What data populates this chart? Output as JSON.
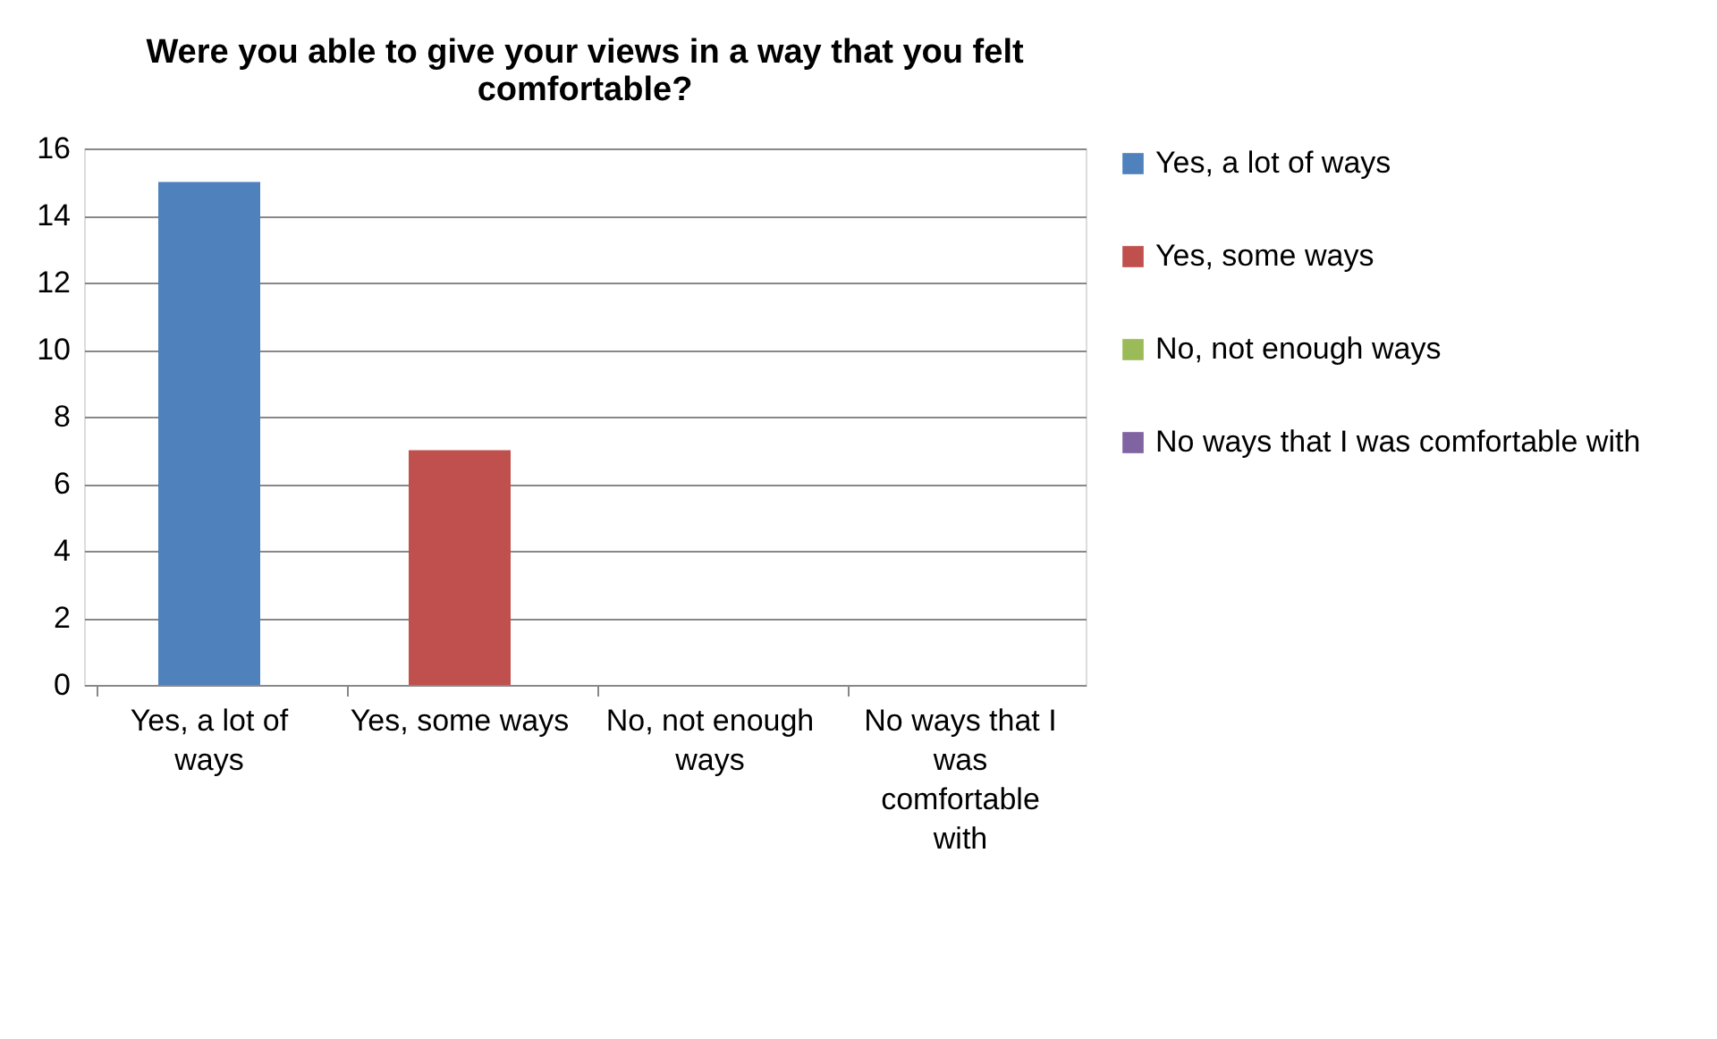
{
  "chart_data": {
    "type": "bar",
    "title": "Were you able to give your views in a way that you felt comfortable?",
    "categories": [
      "Yes, a lot of ways",
      "Yes, some ways",
      "No, not enough ways",
      "No ways that I was comfortable with"
    ],
    "series": [
      {
        "name": "Yes, a lot of ways",
        "color": "#4f81bd",
        "values": [
          15,
          null,
          null,
          null
        ]
      },
      {
        "name": "Yes, some ways",
        "color": "#c0504d",
        "values": [
          null,
          7,
          null,
          null
        ]
      },
      {
        "name": "No, not enough ways",
        "color": "#9bbb59",
        "values": [
          null,
          null,
          0,
          null
        ]
      },
      {
        "name": "No ways that I was comfortable with",
        "color": "#8064a2",
        "values": [
          null,
          null,
          null,
          0
        ]
      }
    ],
    "ylim": [
      0,
      16
    ],
    "yticks": [
      0,
      2,
      4,
      6,
      8,
      10,
      12,
      14,
      16
    ],
    "grid": "y",
    "legend": "right"
  }
}
